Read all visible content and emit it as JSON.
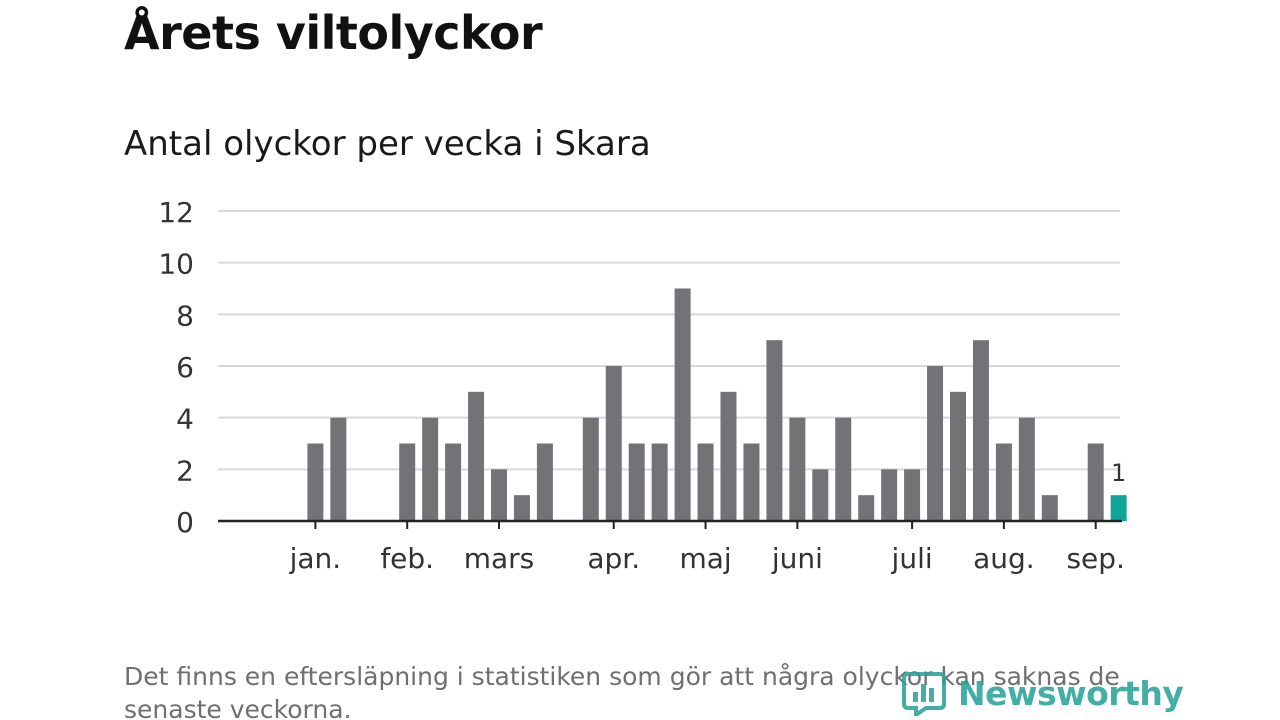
{
  "title": "Årets viltolyckor",
  "subtitle": "Antal olyckor per vecka i Skara",
  "footnote": "Det finns en eftersläpning i statistiken som gör att några olyckor kan saknas de senaste veckorna.",
  "brand": {
    "name": "Newsworthy",
    "icon": "newsworthy-logo-icon",
    "color": "#2aa39a"
  },
  "colors": {
    "bar": "#737277",
    "highlight": "#11a59a",
    "grid": "#d9d9d9",
    "axis": "#222222",
    "text": "#333333"
  },
  "chart_data": {
    "type": "bar",
    "title": "Antal olyckor per vecka i Skara",
    "xlabel": "",
    "ylabel": "",
    "ylim": [
      0,
      12
    ],
    "yticks": [
      0,
      2,
      4,
      6,
      8,
      10,
      12
    ],
    "grid": true,
    "legend": "none",
    "weeks": [
      1,
      2,
      3,
      4,
      5,
      6,
      7,
      8,
      9,
      10,
      11,
      12,
      13,
      14,
      15,
      16,
      17,
      18,
      19,
      20,
      21,
      22,
      23,
      24,
      25,
      26,
      27,
      28,
      29,
      30,
      31,
      32,
      33,
      34,
      35,
      36,
      37,
      38
    ],
    "values": [
      0,
      0,
      3,
      4,
      0,
      0,
      3,
      4,
      3,
      5,
      2,
      1,
      3,
      0,
      4,
      6,
      3,
      3,
      9,
      3,
      5,
      3,
      7,
      4,
      2,
      4,
      1,
      2,
      2,
      6,
      5,
      7,
      3,
      4,
      1,
      0,
      3,
      1
    ],
    "highlight_index": 37,
    "highlight_label": "1",
    "month_ticks": [
      {
        "label": "jan.",
        "week": 3
      },
      {
        "label": "feb.",
        "week": 7
      },
      {
        "label": "mars",
        "week": 11
      },
      {
        "label": "apr.",
        "week": 16
      },
      {
        "label": "maj",
        "week": 20
      },
      {
        "label": "juni",
        "week": 24
      },
      {
        "label": "juli",
        "week": 29
      },
      {
        "label": "aug.",
        "week": 33
      },
      {
        "label": "sep.",
        "week": 37
      }
    ]
  }
}
